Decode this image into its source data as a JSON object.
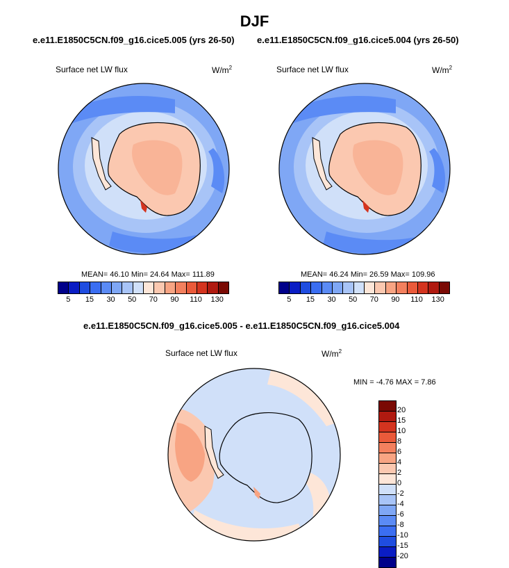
{
  "title": "DJF",
  "case_a": "e.e11.E1850C5CN.f09_g16.cice5.005 (yrs 26-50)",
  "case_b": "e.e11.E1850C5CN.f09_g16.cice5.004 (yrs 26-50)",
  "diff_title": "e.e11.E1850C5CN.f09_g16.cice5.005 - e.e11.E1850C5CN.f09_g16.cice5.004",
  "chart_data": [
    {
      "type": "heatmap",
      "projection": "south-polar-stereographic",
      "variable": "Surface net LW flux",
      "units_base": "W/m",
      "units_exp": "2",
      "stats": "MEAN= 46.10  Min= 24.64  Max= 111.89",
      "mean": 46.1,
      "min": 24.64,
      "max": 111.89,
      "colorbar_labels": [
        "5",
        "15",
        "30",
        "50",
        "70",
        "90",
        "110",
        "130"
      ],
      "colorbar_levels": [
        5,
        10,
        15,
        20,
        30,
        40,
        50,
        60,
        70,
        80,
        90,
        100,
        110,
        120,
        130
      ],
      "colorbar_colors": [
        "#00008a",
        "#0a1dc4",
        "#1f4de0",
        "#3b6ef2",
        "#5b8bf5",
        "#7fa7f5",
        "#a8c4f7",
        "#d0e0f9",
        "#fde6d8",
        "#fbc8b0",
        "#f8a483",
        "#f3805e",
        "#ea5a3a",
        "#d4341f",
        "#b01a10",
        "#7a0a04"
      ]
    },
    {
      "type": "heatmap",
      "projection": "south-polar-stereographic",
      "variable": "Surface net LW flux",
      "units_base": "W/m",
      "units_exp": "2",
      "stats": "MEAN= 46.24  Min= 26.59  Max= 109.96",
      "mean": 46.24,
      "min": 26.59,
      "max": 109.96,
      "colorbar_labels": [
        "5",
        "15",
        "30",
        "50",
        "70",
        "90",
        "110",
        "130"
      ],
      "colorbar_levels": [
        5,
        10,
        15,
        20,
        30,
        40,
        50,
        60,
        70,
        80,
        90,
        100,
        110,
        120,
        130
      ],
      "colorbar_colors": [
        "#00008a",
        "#0a1dc4",
        "#1f4de0",
        "#3b6ef2",
        "#5b8bf5",
        "#7fa7f5",
        "#a8c4f7",
        "#d0e0f9",
        "#fde6d8",
        "#fbc8b0",
        "#f8a483",
        "#f3805e",
        "#ea5a3a",
        "#d4341f",
        "#b01a10",
        "#7a0a04"
      ]
    },
    {
      "type": "heatmap",
      "projection": "south-polar-stereographic",
      "variable": "Surface net LW flux",
      "units_base": "W/m",
      "units_exp": "2",
      "stats": "MIN = -4.76 MAX =  7.86",
      "min": -4.76,
      "max": 7.86,
      "colorbar_labels": [
        "20",
        "15",
        "10",
        "8",
        "6",
        "4",
        "2",
        "0",
        "-2",
        "-4",
        "-6",
        "-8",
        "-10",
        "-15",
        "-20"
      ],
      "colorbar_colors": [
        "#7a0a04",
        "#b01a10",
        "#d4341f",
        "#ea5a3a",
        "#f3805e",
        "#f8a483",
        "#fbc8b0",
        "#fde6d8",
        "#d0e0f9",
        "#a8c4f7",
        "#7fa7f5",
        "#5b8bf5",
        "#3b6ef2",
        "#1f4de0",
        "#0a1dc4",
        "#00008a"
      ]
    }
  ]
}
